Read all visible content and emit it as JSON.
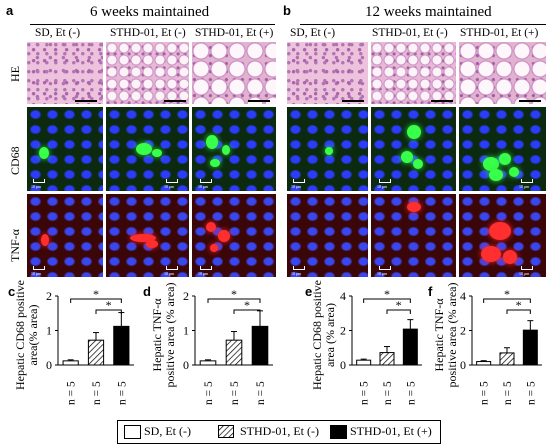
{
  "panels": {
    "a": {
      "label": "a",
      "header": "6 weeks maintained"
    },
    "b": {
      "label": "b",
      "header": "12 weeks maintained"
    }
  },
  "columns": [
    "SD, Et (-)",
    "STHD-01, Et (-)",
    "STHD-01, Et (+)"
  ],
  "rows": [
    "HE",
    "CD68",
    "TNF-α"
  ],
  "fluor_scale_label": "10 μm",
  "colors": {
    "he": "#efc6de",
    "cd68_background": "#0b2a10",
    "tnf_background": "#3b0607",
    "nuclei": "#2b3dfa",
    "cd68_signal": "#38ff4a",
    "tnf_signal": "#ff2f2f"
  },
  "chart_data": [
    {
      "panel": "c",
      "type": "bar",
      "ylabel": "Hepatic CD68 positive area(% area)",
      "ylim": [
        0,
        2
      ],
      "yticks": [
        "0",
        "1",
        "2"
      ],
      "categories": [
        "SD, Et (-)",
        "STHD-01, Et (-)",
        "STHD-01, Et (+)"
      ],
      "values": [
        0.12,
        0.72,
        1.12
      ],
      "errors": [
        0.03,
        0.22,
        0.4
      ],
      "n_labels": [
        "n = 5",
        "n = 5",
        "n = 5"
      ],
      "significance": [
        "*",
        "*"
      ]
    },
    {
      "panel": "d",
      "type": "bar",
      "ylabel": "Hepatic TNF-α positive area (% area)",
      "ylim": [
        0,
        2
      ],
      "yticks": [
        "0",
        "1",
        "2"
      ],
      "categories": [
        "SD, Et (-)",
        "STHD-01, Et (-)",
        "STHD-01, Et (+)"
      ],
      "values": [
        0.12,
        0.72,
        1.12
      ],
      "errors": [
        0.03,
        0.25,
        0.45
      ],
      "n_labels": [
        "n = 5",
        "n = 5",
        "n = 5"
      ],
      "significance": [
        "*",
        "*"
      ]
    },
    {
      "panel": "e",
      "type": "bar",
      "ylabel": "Hepatic CD68 positive area (% area)",
      "ylim": [
        0,
        4
      ],
      "yticks": [
        "0",
        "2",
        "4"
      ],
      "categories": [
        "SD, Et (-)",
        "STHD-01, Et (-)",
        "STHD-01, Et (+)"
      ],
      "values": [
        0.28,
        0.72,
        2.08
      ],
      "errors": [
        0.06,
        0.35,
        0.55
      ],
      "n_labels": [
        "n = 5",
        "n = 5",
        "n = 5"
      ],
      "significance": [
        "*",
        "*"
      ]
    },
    {
      "panel": "f",
      "type": "bar",
      "ylabel": "Hepatic TNF-α positive area (% area)",
      "ylim": [
        0,
        4
      ],
      "yticks": [
        "0",
        "2",
        "4"
      ],
      "categories": [
        "SD, Et (-)",
        "STHD-01, Et (-)",
        "STHD-01, Et (+)"
      ],
      "values": [
        0.2,
        0.7,
        2.02
      ],
      "errors": [
        0.05,
        0.3,
        0.55
      ],
      "n_labels": [
        "n = 5",
        "n = 5",
        "n = 5"
      ],
      "significance": [
        "*",
        "*"
      ]
    }
  ],
  "legend": [
    {
      "label": "SD, Et (-)",
      "fill": "white"
    },
    {
      "label": "STHD-01, Et (-)",
      "fill": "hatched"
    },
    {
      "label": "STHD-01, Et (+)",
      "fill": "black"
    }
  ]
}
